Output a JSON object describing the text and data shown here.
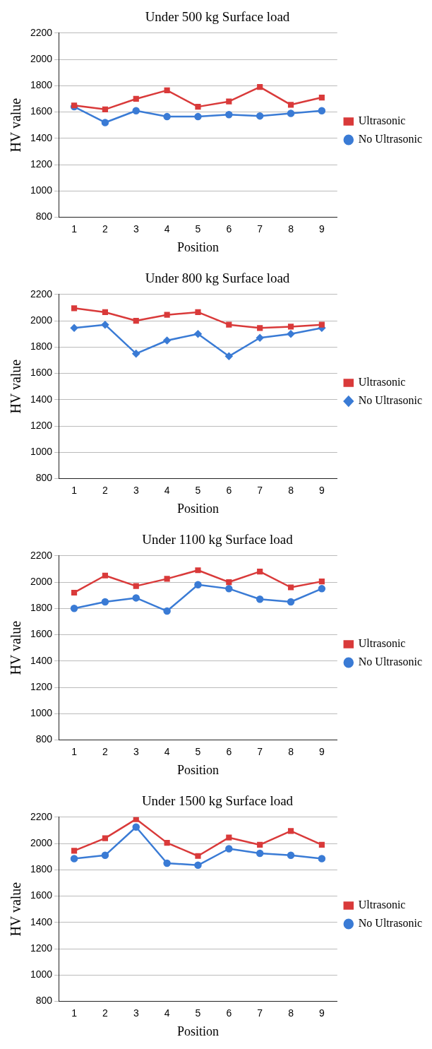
{
  "chart_data": [
    {
      "type": "line",
      "title": "Under 500 kg Surface load",
      "xlabel": "Position",
      "ylabel": "HV value",
      "categories": [
        "1",
        "2",
        "3",
        "4",
        "5",
        "6",
        "7",
        "8",
        "9"
      ],
      "ylim": [
        800,
        2200
      ],
      "yticks": [
        800,
        1000,
        1200,
        1400,
        1600,
        1800,
        2000,
        2200
      ],
      "grid": "y",
      "legend": "right",
      "series": [
        {
          "name": "No Ultrasonic",
          "color": "#3a7bd5",
          "marker": "circle",
          "values": [
            1640,
            1520,
            1610,
            1565,
            1565,
            1580,
            1570,
            1590,
            1610
          ]
        },
        {
          "name": "Ultrasonic",
          "color": "#d93a3a",
          "marker": "square",
          "values": [
            1650,
            1620,
            1700,
            1765,
            1640,
            1680,
            1790,
            1655,
            1710
          ]
        }
      ]
    },
    {
      "type": "line",
      "title": "Under 800 kg Surface load",
      "xlabel": "Position",
      "ylabel": "HV value",
      "categories": [
        "1",
        "2",
        "3",
        "4",
        "5",
        "6",
        "7",
        "8",
        "9"
      ],
      "ylim": [
        800,
        2200
      ],
      "yticks": [
        800,
        1000,
        1200,
        1400,
        1600,
        1800,
        2000,
        2200
      ],
      "grid": "y",
      "legend": "right",
      "series": [
        {
          "name": "No Ultrasonic",
          "color": "#3a7bd5",
          "marker": "diamond",
          "values": [
            1945,
            1970,
            1750,
            1850,
            1900,
            1730,
            1870,
            1900,
            1945
          ]
        },
        {
          "name": "Ultrasonic",
          "color": "#d93a3a",
          "marker": "square",
          "values": [
            2095,
            2065,
            2000,
            2045,
            2065,
            1970,
            1945,
            1955,
            1970
          ]
        }
      ]
    },
    {
      "type": "line",
      "title": "Under 1100 kg Surface load",
      "xlabel": "Position",
      "ylabel": "HV value",
      "categories": [
        "1",
        "2",
        "3",
        "4",
        "5",
        "6",
        "7",
        "8",
        "9"
      ],
      "ylim": [
        800,
        2200
      ],
      "yticks": [
        800,
        1000,
        1200,
        1400,
        1600,
        1800,
        2000,
        2200
      ],
      "grid": "y",
      "legend": "right",
      "series": [
        {
          "name": "No Ultrasonic",
          "color": "#3a7bd5",
          "marker": "circle",
          "values": [
            1800,
            1850,
            1880,
            1780,
            1980,
            1950,
            1870,
            1850,
            1950
          ]
        },
        {
          "name": "Ultrasonic",
          "color": "#d93a3a",
          "marker": "square",
          "values": [
            1920,
            2050,
            1970,
            2025,
            2090,
            2000,
            2080,
            1960,
            2005
          ]
        }
      ]
    },
    {
      "type": "line",
      "title": "Under 1500 kg Surface load",
      "xlabel": "Position",
      "ylabel": "HV value",
      "categories": [
        "1",
        "2",
        "3",
        "4",
        "5",
        "6",
        "7",
        "8",
        "9"
      ],
      "ylim": [
        800,
        2200
      ],
      "yticks": [
        800,
        1000,
        1200,
        1400,
        1600,
        1800,
        2000,
        2200
      ],
      "grid": "y",
      "legend": "right",
      "series": [
        {
          "name": "No Ultrasonic",
          "color": "#3a7bd5",
          "marker": "circle",
          "values": [
            1885,
            1910,
            2125,
            1850,
            1835,
            1960,
            1925,
            1910,
            1885
          ]
        },
        {
          "name": "Ultrasonic",
          "color": "#d93a3a",
          "marker": "square",
          "values": [
            1945,
            2040,
            2185,
            2005,
            1905,
            2045,
            1990,
            2095,
            1990
          ]
        }
      ]
    }
  ]
}
